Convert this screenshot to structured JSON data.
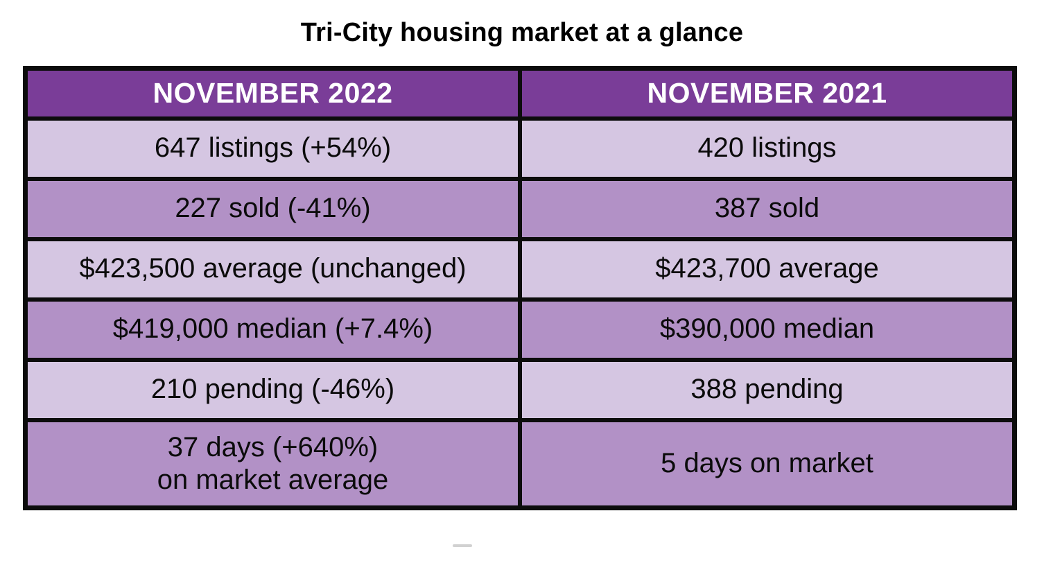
{
  "title": "Tri-City housing market at a glance",
  "chart_data": {
    "type": "table",
    "title": "Tri-City housing market at a glance",
    "columns": [
      "NOVEMBER 2022",
      "NOVEMBER 2021"
    ],
    "rows": [
      [
        "647 listings (+54%)",
        "420 listings"
      ],
      [
        "227 sold (-41%)",
        "387 sold"
      ],
      [
        "$423,500 average (unchanged)",
        "$423,700 average"
      ],
      [
        "$419,000 median (+7.4%)",
        "$390,000 median"
      ],
      [
        "210 pending (-46%)",
        "388 pending"
      ],
      [
        "37 days (+640%)\non market average",
        "5 days on market"
      ]
    ],
    "metrics_nov2022": {
      "listings": 647,
      "listings_change_pct": 54,
      "sold": 227,
      "sold_change_pct": -41,
      "average_price": 423500,
      "average_price_change": "unchanged",
      "median_price": 419000,
      "median_price_change_pct": 7.4,
      "pending": 210,
      "pending_change_pct": -46,
      "days_on_market": 37,
      "days_on_market_change_pct": 640
    },
    "metrics_nov2021": {
      "listings": 420,
      "sold": 387,
      "average_price": 423700,
      "median_price": 390000,
      "pending": 388,
      "days_on_market": 5
    }
  },
  "colors": {
    "header-bg": "#7a3d98",
    "row-light": "#d5c6e2",
    "row-medium": "#b291c6",
    "border": "#0c0c0c",
    "header-text": "#ffffff",
    "cell-text": "#0b0b0b",
    "page-bg": "#ffffff"
  }
}
